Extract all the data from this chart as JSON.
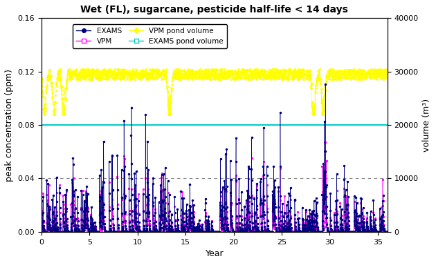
{
  "title": "Wet (FL), sugarcane, pesticide half-life < 14 days",
  "xlabel": "Year",
  "ylabel_left": "peak concentration (ppm)",
  "ylabel_right": "volume (m³)",
  "xlim": [
    0,
    36
  ],
  "ylim_left": [
    0,
    0.16
  ],
  "ylim_right": [
    0,
    40000
  ],
  "yticks_left": [
    0.0,
    0.04,
    0.08,
    0.12,
    0.16
  ],
  "yticks_right": [
    0,
    10000,
    20000,
    30000,
    40000
  ],
  "xticks": [
    0,
    5,
    10,
    15,
    20,
    25,
    30,
    35
  ],
  "exams_pond_volume": 20000,
  "exams_color": "#000080",
  "vpm_color": "#FF00FF",
  "vpm_volume_color": "#FFFF00",
  "exams_volume_color": "#00CCCC",
  "dashed_line_y": 0.04,
  "n_years": 36,
  "pts_per_year": 50,
  "seed": 42,
  "exams_peaks": [
    0.04,
    0.045,
    0.04,
    0.05,
    0.045,
    0.02,
    0.065,
    0.075,
    0.08,
    0.087,
    0.065,
    0.055,
    0.05,
    0.048,
    0.04,
    0.035,
    0.01,
    0.02,
    0.03,
    0.083,
    0.065,
    0.055,
    0.045,
    0.073,
    0.063,
    0.035,
    0.025,
    0.02,
    0.025,
    0.091,
    0.042,
    0.048,
    0.035,
    0.025,
    0.02,
    0.03
  ],
  "vpm_peaks": [
    0.035,
    0.04,
    0.035,
    0.045,
    0.04,
    0.015,
    0.045,
    0.055,
    0.06,
    0.065,
    0.05,
    0.04,
    0.04,
    0.038,
    0.032,
    0.028,
    0.008,
    0.015,
    0.025,
    0.043,
    0.045,
    0.045,
    0.038,
    0.055,
    0.05,
    0.028,
    0.018,
    0.015,
    0.018,
    0.078,
    0.032,
    0.038,
    0.028,
    0.018,
    0.015,
    0.025
  ],
  "vpm_vol_base": 30000,
  "vpm_vol_dip_years": [
    0,
    1,
    2,
    13,
    28,
    29
  ],
  "vpm_vol_dip_min": 22000
}
